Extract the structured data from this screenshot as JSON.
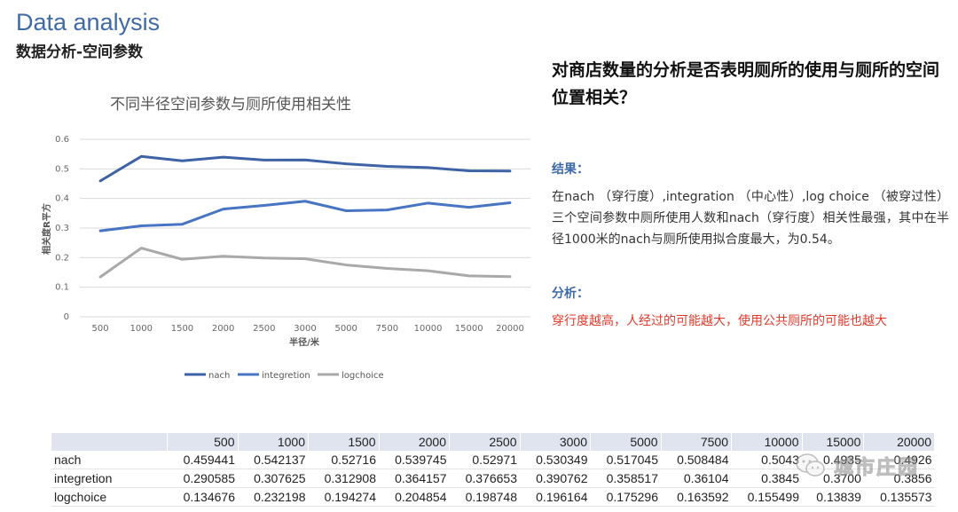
{
  "slide": {
    "title": "Data analysis",
    "subtitle": "数据分析-空间参数"
  },
  "panel": {
    "question": "对商店数量的分析是否表明厕所的使用与厕所的空间位置相关？",
    "result_label": "结果：",
    "result_text": "在nach （穿行度）,integration （中心性）,log choice （被穿过性）三个空间参数中厕所使用人数和nach（穿行度）相关性最强，其中在半径1000米的nach与厕所使用拟合度最大，为0.54。",
    "analysis_label": "分析：",
    "analysis_text": "穿行度越高，人经过的可能越大，使用公共厕所的可能也越大"
  },
  "colors": {
    "nach": "#3e63a5",
    "integretion": "#4774c3",
    "logchoice": "#a9a9a9",
    "accent_blue": "#3f6aa8",
    "accent_red": "#e23a2a"
  },
  "chart_data": {
    "type": "line",
    "title": "不同半径空间参数与厕所使用相关性",
    "xlabel": "半径/米",
    "ylabel": "相关度R平方",
    "categories": [
      "500",
      "1000",
      "1500",
      "2000",
      "2500",
      "3000",
      "5000",
      "7500",
      "10000",
      "15000",
      "20000"
    ],
    "ylim": [
      0,
      0.6
    ],
    "yticks": [
      "0",
      "0.1",
      "0.2",
      "0.3",
      "0.4",
      "0.5",
      "0.6"
    ],
    "grid": true,
    "legend": "bottom",
    "series": [
      {
        "name": "nach",
        "values": [
          0.459441,
          0.542137,
          0.52716,
          0.539745,
          0.52971,
          0.530349,
          0.517045,
          0.508484,
          0.5043,
          0.4935,
          0.4926
        ]
      },
      {
        "name": "integretion",
        "values": [
          0.290585,
          0.307625,
          0.312908,
          0.364157,
          0.376653,
          0.390762,
          0.358517,
          0.36104,
          0.3845,
          0.37,
          0.3856
        ]
      },
      {
        "name": "logchoice",
        "values": [
          0.134676,
          0.232198,
          0.194274,
          0.204854,
          0.198748,
          0.196164,
          0.175296,
          0.163592,
          0.155499,
          0.13839,
          0.135573
        ]
      }
    ]
  },
  "table": {
    "header": [
      "",
      "500",
      "1000",
      "1500",
      "2000",
      "2500",
      "3000",
      "5000",
      "7500",
      "10000",
      "15000",
      "20000"
    ],
    "rows": [
      {
        "label": "nach",
        "cells": [
          "0.459441",
          "0.542137",
          "0.52716",
          "0.539745",
          "0.52971",
          "0.530349",
          "0.517045",
          "0.508484",
          "0.5043",
          "0.4935",
          "0.4926"
        ]
      },
      {
        "label": "integretion",
        "cells": [
          "0.290585",
          "0.307625",
          "0.312908",
          "0.364157",
          "0.376653",
          "0.390762",
          "0.358517",
          "0.36104",
          "0.3845",
          "0.3700",
          "0.3856"
        ]
      },
      {
        "label": "logchoice",
        "cells": [
          "0.134676",
          "0.232198",
          "0.194274",
          "0.204854",
          "0.198748",
          "0.196164",
          "0.175296",
          "0.163592",
          "0.155499",
          "0.13839",
          "0.135573"
        ]
      }
    ]
  },
  "watermark": {
    "text": "城市庄园",
    "icon": "wechat-icon"
  }
}
